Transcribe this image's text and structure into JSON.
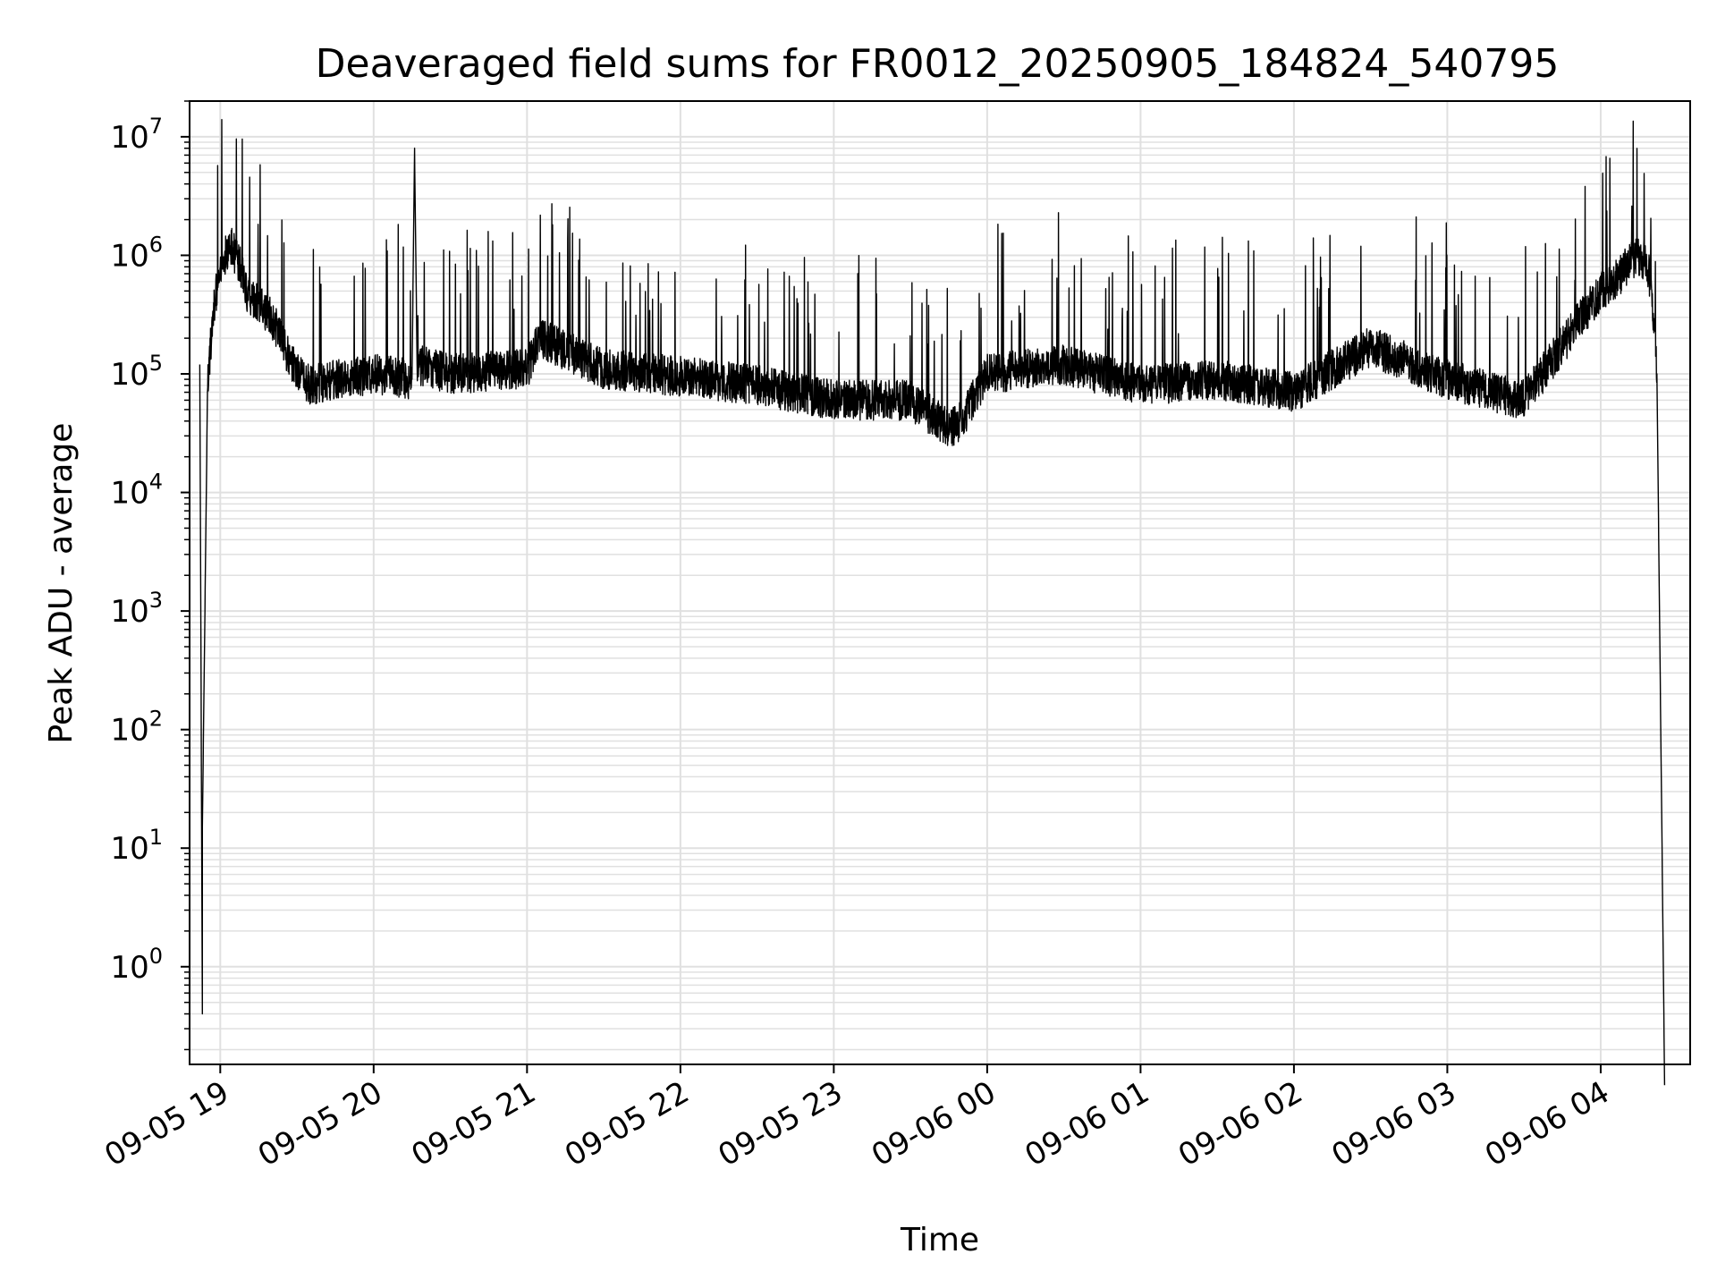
{
  "chart_data": {
    "type": "line",
    "title": "Deaveraged field sums for FR0012_20250905_184824_540795",
    "xlabel": "Time",
    "ylabel": "Peak ADU - average",
    "yscale": "log",
    "grid": true,
    "legend": "none",
    "line_color": "#000000",
    "grid_color": "#e0e0e0",
    "xlim": [
      "2025-09-05 18:48",
      "2025-09-06 04:35"
    ],
    "ylim": [
      0.15,
      20000000
    ],
    "x_ticks": [
      {
        "t": "2025-09-05 19:00",
        "label": "09-05 19"
      },
      {
        "t": "2025-09-05 20:00",
        "label": "09-05 20"
      },
      {
        "t": "2025-09-05 21:00",
        "label": "09-05 21"
      },
      {
        "t": "2025-09-05 22:00",
        "label": "09-05 22"
      },
      {
        "t": "2025-09-05 23:00",
        "label": "09-05 23"
      },
      {
        "t": "2025-09-06 00:00",
        "label": "09-06 00"
      },
      {
        "t": "2025-09-06 01:00",
        "label": "09-06 01"
      },
      {
        "t": "2025-09-06 02:00",
        "label": "09-06 02"
      },
      {
        "t": "2025-09-06 03:00",
        "label": "09-06 03"
      },
      {
        "t": "2025-09-06 04:00",
        "label": "09-06 04"
      }
    ],
    "y_ticks": [
      {
        "value": 1,
        "base": "10",
        "exp": "0"
      },
      {
        "value": 10,
        "base": "10",
        "exp": "1"
      },
      {
        "value": 100,
        "base": "10",
        "exp": "2"
      },
      {
        "value": 1000,
        "base": "10",
        "exp": "3"
      },
      {
        "value": 10000,
        "base": "10",
        "exp": "4"
      },
      {
        "value": 100000,
        "base": "10",
        "exp": "5"
      },
      {
        "value": 1000000,
        "base": "10",
        "exp": "6"
      },
      {
        "value": 10000000,
        "base": "10",
        "exp": "7"
      }
    ],
    "series": [
      {
        "x": [
          "2025-09-05 18:52",
          "2025-09-05 18:53",
          "2025-09-05 18:53",
          "2025-09-05 18:54",
          "2025-09-05 18:55",
          "2025-09-05 18:57",
          "2025-09-05 19:00",
          "2025-09-05 19:04",
          "2025-09-05 19:08",
          "2025-09-05 19:10",
          "2025-09-05 19:12",
          "2025-09-05 19:20",
          "2025-09-05 19:30",
          "2025-09-05 19:35",
          "2025-09-05 19:45",
          "2025-09-05 20:00",
          "2025-09-05 20:15",
          "2025-09-05 20:16",
          "2025-09-05 20:17",
          "2025-09-05 20:30",
          "2025-09-05 21:00",
          "2025-09-05 21:05",
          "2025-09-05 21:30",
          "2025-09-05 22:00",
          "2025-09-05 22:30",
          "2025-09-05 23:00",
          "2025-09-05 23:30",
          "2025-09-05 23:45",
          "2025-09-05 23:50",
          "2025-09-06 00:00",
          "2025-09-06 00:30",
          "2025-09-06 01:00",
          "2025-09-06 01:30",
          "2025-09-06 02:00",
          "2025-09-06 02:30",
          "2025-09-06 03:00",
          "2025-09-06 03:30",
          "2025-09-06 03:50",
          "2025-09-06 04:00",
          "2025-09-06 04:08",
          "2025-09-06 04:14",
          "2025-09-06 04:18",
          "2025-09-06 04:20",
          "2025-09-06 04:22",
          "2025-09-06 04:24",
          "2025-09-06 04:25"
        ],
        "y": [
          120000,
          0.4,
          15,
          1000,
          70000,
          300000,
          800000,
          1200000,
          800000,
          500000,
          450000,
          300000,
          100000,
          80000,
          90000,
          100000,
          90000,
          8000000,
          120000,
          100000,
          110000,
          200000,
          110000,
          95000,
          80000,
          60000,
          60000,
          35000,
          40000,
          100000,
          120000,
          80000,
          90000,
          70000,
          170000,
          90000,
          60000,
          250000,
          500000,
          700000,
          1000000,
          900000,
          500000,
          100000,
          10,
          0.1
        ]
      }
    ]
  }
}
